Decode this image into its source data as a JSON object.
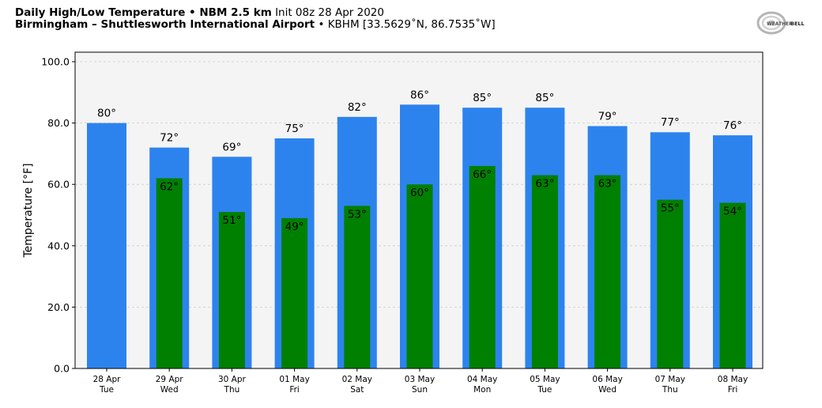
{
  "header": {
    "line1_bold": "Daily High/Low Temperature • NBM 2.5 km",
    "line1_normal": "Init 08z 28 Apr 2020",
    "line2_bold": "Birmingham – Shuttlesworth International Airport",
    "line2_normal": "• KBHM [33.5629˚N, 86.7535˚W]"
  },
  "logo": {
    "text_left": "WEATHER",
    "text_right": "BELL",
    "icon": "weatherbell-swirl-logo"
  },
  "colors": {
    "high": "#2d83ee",
    "low": "#008000",
    "plot_bg": "#f4f4f4",
    "grid": "#cccccc"
  },
  "chart_data": {
    "type": "bar",
    "ylabel": "Temperature [°F]",
    "ylim": [
      0,
      100
    ],
    "yticks": [
      "0.0",
      "20.0",
      "40.0",
      "60.0",
      "80.0",
      "100.0"
    ],
    "grid": true,
    "categories": [
      {
        "date": "28 Apr",
        "day": "Tue"
      },
      {
        "date": "29 Apr",
        "day": "Wed"
      },
      {
        "date": "30 Apr",
        "day": "Thu"
      },
      {
        "date": "01 May",
        "day": "Fri"
      },
      {
        "date": "02 May",
        "day": "Sat"
      },
      {
        "date": "03 May",
        "day": "Sun"
      },
      {
        "date": "04 May",
        "day": "Mon"
      },
      {
        "date": "05 May",
        "day": "Tue"
      },
      {
        "date": "06 May",
        "day": "Wed"
      },
      {
        "date": "07 May",
        "day": "Thu"
      },
      {
        "date": "08 May",
        "day": "Fri"
      }
    ],
    "series": [
      {
        "key": "high",
        "values": [
          80,
          72,
          69,
          75,
          82,
          86,
          85,
          85,
          79,
          77,
          76
        ],
        "labels": [
          "80°",
          "72°",
          "69°",
          "75°",
          "82°",
          "86°",
          "85°",
          "85°",
          "79°",
          "77°",
          "76°"
        ]
      },
      {
        "key": "low",
        "values": [
          null,
          62,
          51,
          49,
          53,
          60,
          66,
          63,
          63,
          55,
          54
        ],
        "labels": [
          null,
          "62°",
          "51°",
          "49°",
          "53°",
          "60°",
          "66°",
          "63°",
          "63°",
          "55°",
          "54°"
        ]
      }
    ]
  }
}
